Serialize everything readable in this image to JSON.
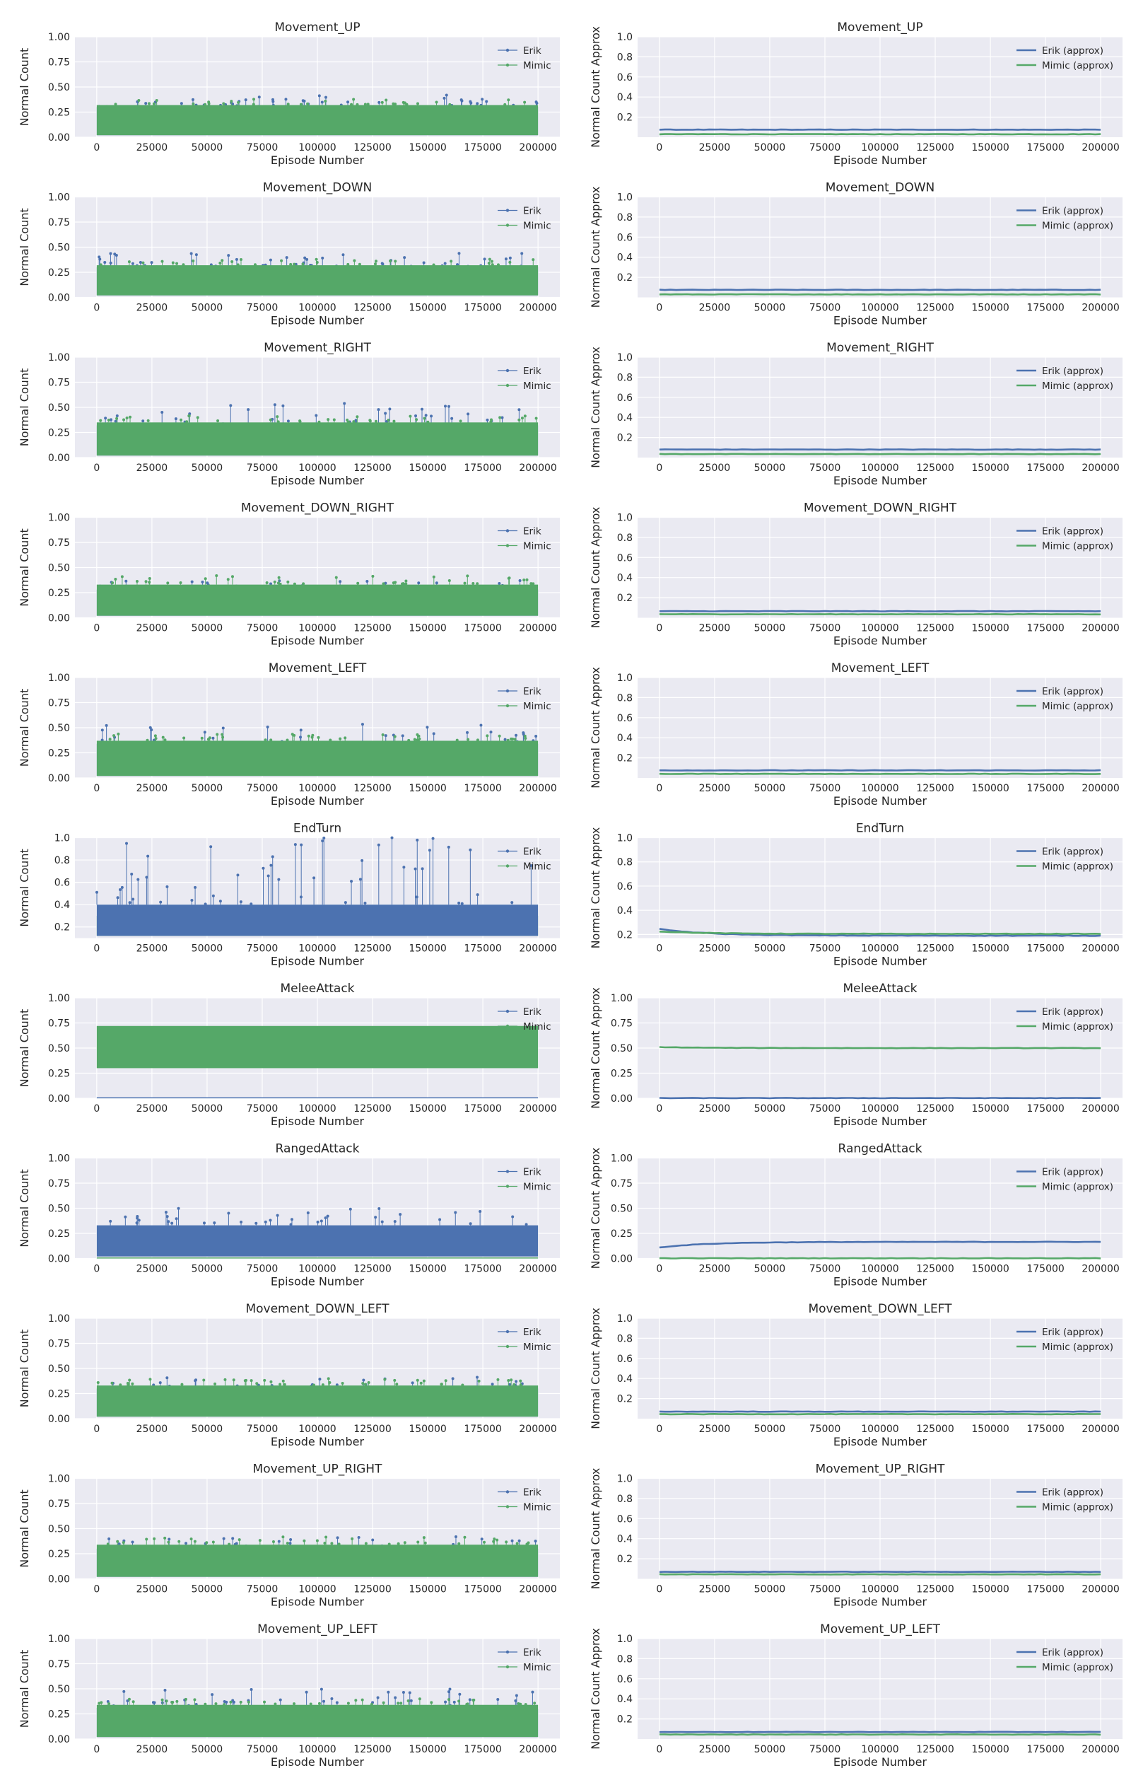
{
  "figure": {
    "colors": {
      "erik": "#4c72b0",
      "mimic": "#55a868",
      "plot_bg": "#eaeaf2",
      "grid": "#ffffff"
    }
  },
  "chart_data": [
    {
      "type": "scatter",
      "title": "Movement_UP",
      "xlabel": "Episode Number",
      "ylabel": "Normal Count",
      "xlim": [
        0,
        200000
      ],
      "ylim": [
        0,
        1.0
      ],
      "xticks": [
        "0",
        "25000",
        "50000",
        "75000",
        "100000",
        "125000",
        "150000",
        "175000",
        "200000"
      ],
      "yticks": [
        "0.00",
        "0.25",
        "0.50",
        "0.75",
        "1.00"
      ],
      "legend": "top-right",
      "series": [
        {
          "name": "Erik",
          "band": [
            0.02,
            0.3
          ],
          "peak": 0.42
        },
        {
          "name": "Mimic",
          "band": [
            0.02,
            0.32
          ],
          "peak": 0.38
        }
      ]
    },
    {
      "type": "line",
      "title": "Movement_UP",
      "xlabel": "Episode Number",
      "ylabel": "Normal Count Approx",
      "xlim": [
        0,
        200000
      ],
      "ylim": [
        0.0,
        1.0
      ],
      "xticks": [
        "0",
        "25000",
        "50000",
        "75000",
        "100000",
        "125000",
        "150000",
        "175000",
        "200000"
      ],
      "yticks": [
        "0.2",
        "0.4",
        "0.6",
        "0.8",
        "1.0"
      ],
      "legend": "top-right",
      "series": [
        {
          "name": "Erik (approx)",
          "level": 0.075
        },
        {
          "name": "Mimic (approx)",
          "level": 0.03
        }
      ]
    },
    {
      "type": "scatter",
      "title": "Movement_DOWN",
      "xlabel": "Episode Number",
      "ylabel": "Normal Count",
      "xlim": [
        0,
        200000
      ],
      "ylim": [
        0,
        1.0
      ],
      "xticks": [
        "0",
        "25000",
        "50000",
        "75000",
        "100000",
        "125000",
        "150000",
        "175000",
        "200000"
      ],
      "yticks": [
        "0.00",
        "0.25",
        "0.50",
        "0.75",
        "1.00"
      ],
      "legend": "top-right",
      "series": [
        {
          "name": "Erik",
          "band": [
            0.02,
            0.3
          ],
          "peak": 0.45
        },
        {
          "name": "Mimic",
          "band": [
            0.02,
            0.32
          ],
          "peak": 0.38
        }
      ]
    },
    {
      "type": "line",
      "title": "Movement_DOWN",
      "xlabel": "Episode Number",
      "ylabel": "Normal Count Approx",
      "xlim": [
        0,
        200000
      ],
      "ylim": [
        0.0,
        1.0
      ],
      "xticks": [
        "0",
        "25000",
        "50000",
        "75000",
        "100000",
        "125000",
        "150000",
        "175000",
        "200000"
      ],
      "yticks": [
        "0.2",
        "0.4",
        "0.6",
        "0.8",
        "1.0"
      ],
      "legend": "top-right",
      "series": [
        {
          "name": "Erik (approx)",
          "level": 0.075
        },
        {
          "name": "Mimic (approx)",
          "level": 0.03
        }
      ]
    },
    {
      "type": "scatter",
      "title": "Movement_RIGHT",
      "xlabel": "Episode Number",
      "ylabel": "Normal Count",
      "xlim": [
        0,
        200000
      ],
      "ylim": [
        0,
        1.0
      ],
      "xticks": [
        "0",
        "25000",
        "50000",
        "75000",
        "100000",
        "125000",
        "150000",
        "175000",
        "200000"
      ],
      "yticks": [
        "0.00",
        "0.25",
        "0.50",
        "0.75",
        "1.00"
      ],
      "legend": "top-right",
      "series": [
        {
          "name": "Erik",
          "band": [
            0.02,
            0.32
          ],
          "peak": 0.55
        },
        {
          "name": "Mimic",
          "band": [
            0.02,
            0.35
          ],
          "peak": 0.42
        }
      ]
    },
    {
      "type": "line",
      "title": "Movement_RIGHT",
      "xlabel": "Episode Number",
      "ylabel": "Normal Count Approx",
      "xlim": [
        0,
        200000
      ],
      "ylim": [
        0.0,
        1.0
      ],
      "xticks": [
        "0",
        "25000",
        "50000",
        "75000",
        "100000",
        "125000",
        "150000",
        "175000",
        "200000"
      ],
      "yticks": [
        "0.2",
        "0.4",
        "0.6",
        "0.8",
        "1.0"
      ],
      "legend": "top-right",
      "series": [
        {
          "name": "Erik (approx)",
          "level": 0.08
        },
        {
          "name": "Mimic (approx)",
          "level": 0.035
        }
      ]
    },
    {
      "type": "scatter",
      "title": "Movement_DOWN_RIGHT",
      "xlabel": "Episode Number",
      "ylabel": "Normal Count",
      "xlim": [
        0,
        200000
      ],
      "ylim": [
        0,
        1.0
      ],
      "xticks": [
        "0",
        "25000",
        "50000",
        "75000",
        "100000",
        "125000",
        "150000",
        "175000",
        "200000"
      ],
      "yticks": [
        "0.00",
        "0.25",
        "0.50",
        "0.75",
        "1.00"
      ],
      "legend": "top-right",
      "series": [
        {
          "name": "Erik",
          "band": [
            0.02,
            0.28
          ],
          "peak": 0.38
        },
        {
          "name": "Mimic",
          "band": [
            0.02,
            0.33
          ],
          "peak": 0.42
        }
      ]
    },
    {
      "type": "line",
      "title": "Movement_DOWN_RIGHT",
      "xlabel": "Episode Number",
      "ylabel": "Normal Count Approx",
      "xlim": [
        0,
        200000
      ],
      "ylim": [
        0.0,
        1.0
      ],
      "xticks": [
        "0",
        "25000",
        "50000",
        "75000",
        "100000",
        "125000",
        "150000",
        "175000",
        "200000"
      ],
      "yticks": [
        "0.2",
        "0.4",
        "0.6",
        "0.8",
        "1.0"
      ],
      "legend": "top-right",
      "series": [
        {
          "name": "Erik (approx)",
          "level": 0.065
        },
        {
          "name": "Mimic (approx)",
          "level": 0.035
        }
      ]
    },
    {
      "type": "scatter",
      "title": "Movement_LEFT",
      "xlabel": "Episode Number",
      "ylabel": "Normal Count",
      "xlim": [
        0,
        200000
      ],
      "ylim": [
        0,
        1.0
      ],
      "xticks": [
        "0",
        "25000",
        "50000",
        "75000",
        "100000",
        "125000",
        "150000",
        "175000",
        "200000"
      ],
      "yticks": [
        "0.00",
        "0.25",
        "0.50",
        "0.75",
        "1.00"
      ],
      "legend": "top-right",
      "series": [
        {
          "name": "Erik",
          "band": [
            0.02,
            0.34
          ],
          "peak": 0.55
        },
        {
          "name": "Mimic",
          "band": [
            0.02,
            0.37
          ],
          "peak": 0.44
        }
      ]
    },
    {
      "type": "line",
      "title": "Movement_LEFT",
      "xlabel": "Episode Number",
      "ylabel": "Normal Count Approx",
      "xlim": [
        0,
        200000
      ],
      "ylim": [
        0.0,
        1.0
      ],
      "xticks": [
        "0",
        "25000",
        "50000",
        "75000",
        "100000",
        "125000",
        "150000",
        "175000",
        "200000"
      ],
      "yticks": [
        "0.2",
        "0.4",
        "0.6",
        "0.8",
        "1.0"
      ],
      "legend": "top-right",
      "series": [
        {
          "name": "Erik (approx)",
          "level": 0.075
        },
        {
          "name": "Mimic (approx)",
          "level": 0.04
        }
      ]
    },
    {
      "type": "scatter",
      "title": "EndTurn",
      "xlabel": "Episode Number",
      "ylabel": "Normal Count",
      "xlim": [
        0,
        200000
      ],
      "ylim": [
        0.1,
        1.0
      ],
      "xticks": [
        "0",
        "25000",
        "50000",
        "75000",
        "100000",
        "125000",
        "150000",
        "175000",
        "200000"
      ],
      "yticks": [
        "0.2",
        "0.4",
        "0.6",
        "0.8",
        "1.0"
      ],
      "legend": "top-right",
      "series": [
        {
          "name": "Erik",
          "band": [
            0.12,
            0.4
          ],
          "peak": 1.0
        },
        {
          "name": "Mimic",
          "band": [
            0.12,
            0.3
          ],
          "peak": 0.3
        }
      ]
    },
    {
      "type": "line",
      "title": "EndTurn",
      "xlabel": "Episode Number",
      "ylabel": "Normal Count Approx",
      "xlim": [
        0,
        200000
      ],
      "ylim": [
        0.17,
        1.0
      ],
      "xticks": [
        "0",
        "25000",
        "50000",
        "75000",
        "100000",
        "125000",
        "150000",
        "175000",
        "200000"
      ],
      "yticks": [
        "0.2",
        "0.4",
        "0.6",
        "0.8",
        "1.0"
      ],
      "legend": "top-right",
      "series": [
        {
          "name": "Erik (approx)",
          "start": 0.245,
          "level": 0.19
        },
        {
          "name": "Mimic (approx)",
          "start": 0.225,
          "level": 0.205
        }
      ]
    },
    {
      "type": "scatter",
      "title": "MeleeAttack",
      "xlabel": "Episode Number",
      "ylabel": "Normal Count",
      "xlim": [
        0,
        200000
      ],
      "ylim": [
        0,
        1.0
      ],
      "xticks": [
        "0",
        "25000",
        "50000",
        "75000",
        "100000",
        "125000",
        "150000",
        "175000",
        "200000"
      ],
      "yticks": [
        "0.00",
        "0.25",
        "0.50",
        "0.75",
        "1.00"
      ],
      "legend": "top-right",
      "series": [
        {
          "name": "Erik",
          "band": [
            0.0,
            0.01
          ],
          "peak": 0.01
        },
        {
          "name": "Mimic",
          "band": [
            0.3,
            0.72
          ],
          "peak": 0.72
        }
      ]
    },
    {
      "type": "line",
      "title": "MeleeAttack",
      "xlabel": "Episode Number",
      "ylabel": "Normal Count Approx",
      "xlim": [
        0,
        200000
      ],
      "ylim": [
        0,
        1.0
      ],
      "xticks": [
        "0",
        "25000",
        "50000",
        "75000",
        "100000",
        "125000",
        "150000",
        "175000",
        "200000"
      ],
      "yticks": [
        "0.00",
        "0.25",
        "0.50",
        "0.75",
        "1.00"
      ],
      "legend": "top-right",
      "series": [
        {
          "name": "Erik (approx)",
          "level": 0.002
        },
        {
          "name": "Mimic (approx)",
          "start": 0.51,
          "level": 0.5
        }
      ]
    },
    {
      "type": "scatter",
      "title": "RangedAttack",
      "xlabel": "Episode Number",
      "ylabel": "Normal Count",
      "xlim": [
        0,
        200000
      ],
      "ylim": [
        0,
        1.0
      ],
      "xticks": [
        "0",
        "25000",
        "50000",
        "75000",
        "100000",
        "125000",
        "150000",
        "175000",
        "200000"
      ],
      "yticks": [
        "0.00",
        "0.25",
        "0.50",
        "0.75",
        "1.00"
      ],
      "legend": "top-right",
      "series": [
        {
          "name": "Erik",
          "band": [
            0.02,
            0.33
          ],
          "peak": 0.5
        },
        {
          "name": "Mimic",
          "band": [
            0.0,
            0.01
          ],
          "peak": 0.01
        }
      ]
    },
    {
      "type": "line",
      "title": "RangedAttack",
      "xlabel": "Episode Number",
      "ylabel": "Normal Count Approx",
      "xlim": [
        0,
        200000
      ],
      "ylim": [
        0,
        1.0
      ],
      "xticks": [
        "0",
        "25000",
        "50000",
        "75000",
        "100000",
        "125000",
        "150000",
        "175000",
        "200000"
      ],
      "yticks": [
        "0.00",
        "0.25",
        "0.50",
        "0.75",
        "1.00"
      ],
      "legend": "top-right",
      "series": [
        {
          "name": "Erik (approx)",
          "start": 0.11,
          "level": 0.165
        },
        {
          "name": "Mimic (approx)",
          "level": 0.002
        }
      ]
    },
    {
      "type": "scatter",
      "title": "Movement_DOWN_LEFT",
      "xlabel": "Episode Number",
      "ylabel": "Normal Count",
      "xlim": [
        0,
        200000
      ],
      "ylim": [
        0,
        1.0
      ],
      "xticks": [
        "0",
        "25000",
        "50000",
        "75000",
        "100000",
        "125000",
        "150000",
        "175000",
        "200000"
      ],
      "yticks": [
        "0.00",
        "0.25",
        "0.50",
        "0.75",
        "1.00"
      ],
      "legend": "top-right",
      "series": [
        {
          "name": "Erik",
          "band": [
            0.02,
            0.3
          ],
          "peak": 0.42
        },
        {
          "name": "Mimic",
          "band": [
            0.02,
            0.33
          ],
          "peak": 0.4
        }
      ]
    },
    {
      "type": "line",
      "title": "Movement_DOWN_LEFT",
      "xlabel": "Episode Number",
      "ylabel": "Normal Count Approx",
      "xlim": [
        0,
        200000
      ],
      "ylim": [
        0.0,
        1.0
      ],
      "xticks": [
        "0",
        "25000",
        "50000",
        "75000",
        "100000",
        "125000",
        "150000",
        "175000",
        "200000"
      ],
      "yticks": [
        "0.2",
        "0.4",
        "0.6",
        "0.8",
        "1.0"
      ],
      "legend": "top-right",
      "series": [
        {
          "name": "Erik (approx)",
          "level": 0.07
        },
        {
          "name": "Mimic (approx)",
          "level": 0.045
        }
      ]
    },
    {
      "type": "scatter",
      "title": "Movement_UP_RIGHT",
      "xlabel": "Episode Number",
      "ylabel": "Normal Count",
      "xlim": [
        0,
        200000
      ],
      "ylim": [
        0,
        1.0
      ],
      "xticks": [
        "0",
        "25000",
        "50000",
        "75000",
        "100000",
        "125000",
        "150000",
        "175000",
        "200000"
      ],
      "yticks": [
        "0.00",
        "0.25",
        "0.50",
        "0.75",
        "1.00"
      ],
      "legend": "top-right",
      "series": [
        {
          "name": "Erik",
          "band": [
            0.02,
            0.3
          ],
          "peak": 0.42
        },
        {
          "name": "Mimic",
          "band": [
            0.02,
            0.34
          ],
          "peak": 0.42
        }
      ]
    },
    {
      "type": "line",
      "title": "Movement_UP_RIGHT",
      "xlabel": "Episode Number",
      "ylabel": "Normal Count Approx",
      "xlim": [
        0,
        200000
      ],
      "ylim": [
        0.0,
        1.0
      ],
      "xticks": [
        "0",
        "25000",
        "50000",
        "75000",
        "100000",
        "125000",
        "150000",
        "175000",
        "200000"
      ],
      "yticks": [
        "0.2",
        "0.4",
        "0.6",
        "0.8",
        "1.0"
      ],
      "legend": "top-right",
      "series": [
        {
          "name": "Erik (approx)",
          "level": 0.07
        },
        {
          "name": "Mimic (approx)",
          "level": 0.045
        }
      ]
    },
    {
      "type": "scatter",
      "title": "Movement_UP_LEFT",
      "xlabel": "Episode Number",
      "ylabel": "Normal Count",
      "xlim": [
        0,
        200000
      ],
      "ylim": [
        0,
        1.0
      ],
      "xticks": [
        "0",
        "25000",
        "50000",
        "75000",
        "100000",
        "125000",
        "150000",
        "175000",
        "200000"
      ],
      "yticks": [
        "0.00",
        "0.25",
        "0.50",
        "0.75",
        "1.00"
      ],
      "legend": "top-right",
      "series": [
        {
          "name": "Erik",
          "band": [
            0.02,
            0.3
          ],
          "peak": 0.5
        },
        {
          "name": "Mimic",
          "band": [
            0.02,
            0.34
          ],
          "peak": 0.4
        }
      ]
    },
    {
      "type": "line",
      "title": "Movement_UP_LEFT",
      "xlabel": "Episode Number",
      "ylabel": "Normal Count Approx",
      "xlim": [
        0,
        200000
      ],
      "ylim": [
        0.0,
        1.0
      ],
      "xticks": [
        "0",
        "25000",
        "50000",
        "75000",
        "100000",
        "125000",
        "150000",
        "175000",
        "200000"
      ],
      "yticks": [
        "0.2",
        "0.4",
        "0.6",
        "0.8",
        "1.0"
      ],
      "legend": "top-right",
      "series": [
        {
          "name": "Erik (approx)",
          "level": 0.07
        },
        {
          "name": "Mimic (approx)",
          "level": 0.045
        }
      ]
    }
  ]
}
